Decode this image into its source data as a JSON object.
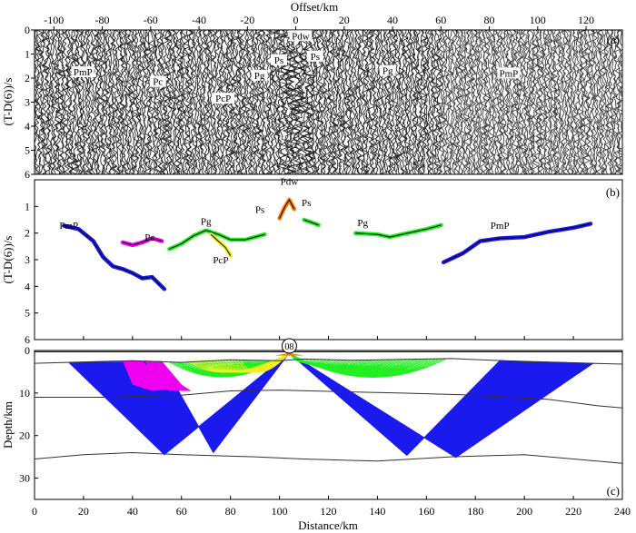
{
  "colors": {
    "blue": "#1a1aee",
    "magenta": "#f000f0",
    "green": "#22ee22",
    "yellow": "#f0f020",
    "orange": "#ff7a00",
    "line": "#333333"
  },
  "chart_data": [
    {
      "panel": "(a)",
      "type": "heatmap",
      "xlabel": "Offset/km",
      "ylabel": "(T-D(6))/s",
      "xlim": [
        -108,
        135
      ],
      "ylim": [
        0,
        6
      ],
      "xticks": [
        -100,
        -80,
        -60,
        -40,
        -20,
        0,
        20,
        40,
        60,
        80,
        100,
        120
      ],
      "yticks": [
        0,
        1,
        2,
        3,
        4,
        5,
        6
      ],
      "annotations": [
        {
          "text": "PmP",
          "x": -88,
          "y": 1.85
        },
        {
          "text": "Pc",
          "x": -57,
          "y": 2.25
        },
        {
          "text": "PcP",
          "x": -30,
          "y": 2.95
        },
        {
          "text": "Pg",
          "x": -15,
          "y": 2.0
        },
        {
          "text": "Ps",
          "x": -7,
          "y": 1.35
        },
        {
          "text": "Pdw",
          "x": 2,
          "y": 0.35
        },
        {
          "text": "Ps",
          "x": 8,
          "y": 1.2
        },
        {
          "text": "Pg",
          "x": 38,
          "y": 1.8
        },
        {
          "text": "PmP",
          "x": 88,
          "y": 1.9
        }
      ]
    },
    {
      "panel": "(b)",
      "type": "scatter",
      "ylabel": "(T-D(6))/s",
      "xlim": [
        0,
        240
      ],
      "ylim": [
        0,
        6
      ],
      "yticks": [
        1,
        2,
        3,
        4,
        5,
        6
      ],
      "series": [
        {
          "label": "PmP",
          "color": "blue",
          "x": [
            12,
            18,
            24,
            28,
            32,
            36,
            40,
            44,
            48,
            53
          ],
          "y": [
            1.72,
            1.85,
            2.3,
            2.9,
            3.25,
            3.35,
            3.5,
            3.7,
            3.65,
            4.1
          ]
        },
        {
          "label": "Pc",
          "color": "magenta",
          "x": [
            36,
            40,
            44,
            48,
            52
          ],
          "y": [
            2.35,
            2.45,
            2.35,
            2.2,
            2.3
          ]
        },
        {
          "label": "Pg",
          "color": "green",
          "x": [
            55,
            60,
            65,
            70,
            75,
            80,
            86,
            90,
            94
          ],
          "y": [
            2.6,
            2.4,
            2.1,
            1.9,
            2.05,
            2.25,
            2.25,
            2.15,
            2.05
          ]
        },
        {
          "label": "PcP",
          "color": "yellow",
          "x": [
            72,
            75,
            78,
            80
          ],
          "y": [
            2.05,
            2.3,
            2.55,
            2.85
          ]
        },
        {
          "label": "Pdw",
          "color": "orange",
          "x": [
            100,
            102,
            104,
            106
          ],
          "y": [
            1.45,
            1.05,
            0.75,
            1.1
          ]
        },
        {
          "label": "Ps",
          "color": "green",
          "x": [
            110,
            113,
            116
          ],
          "y": [
            1.5,
            1.6,
            1.7
          ]
        },
        {
          "label": "Pg",
          "color": "green",
          "x": [
            131,
            140,
            145,
            150,
            160,
            166
          ],
          "y": [
            2.0,
            2.05,
            2.15,
            2.05,
            1.85,
            1.7
          ]
        },
        {
          "label": "PmP",
          "color": "blue",
          "x": [
            167,
            175,
            182,
            190,
            200,
            210,
            220,
            227
          ],
          "y": [
            3.1,
            2.75,
            2.3,
            2.2,
            2.15,
            1.95,
            1.8,
            1.65
          ]
        }
      ],
      "annotations": [
        {
          "text": "PmP",
          "x": 14,
          "y": 1.7
        },
        {
          "text": "Pc",
          "x": 47,
          "y": 2.15
        },
        {
          "text": "Pg",
          "x": 70,
          "y": 1.55
        },
        {
          "text": "PcP",
          "x": 76,
          "y": 3.0
        },
        {
          "text": "Ps",
          "x": 92,
          "y": 1.1
        },
        {
          "text": "Pdw",
          "x": 104,
          "y": 0.05
        },
        {
          "text": "Ps",
          "x": 111,
          "y": 0.85
        },
        {
          "text": "Pg",
          "x": 134,
          "y": 1.6
        },
        {
          "text": "PmP",
          "x": 190,
          "y": 1.7
        }
      ]
    },
    {
      "panel": "(c)",
      "type": "ray-diagram",
      "xlabel": "Distance/km",
      "ylabel": "Depth/km",
      "xlim": [
        0,
        240
      ],
      "ylim": [
        0,
        35
      ],
      "xticks": [
        0,
        20,
        40,
        60,
        80,
        100,
        120,
        140,
        160,
        180,
        200,
        220,
        240
      ],
      "yticks": [
        0,
        10,
        20,
        30
      ],
      "station_label": "08",
      "source_x": 104,
      "layers": [
        {
          "x": [
            0,
            40,
            60,
            80,
            100,
            110,
            130,
            170,
            200,
            240
          ],
          "y": [
            3,
            2.4,
            2.8,
            2.2,
            2.4,
            2.0,
            2.3,
            1.9,
            2.6,
            3.2
          ]
        },
        {
          "x": [
            0,
            30,
            60,
            80,
            100,
            120,
            150,
            180,
            210,
            230,
            240
          ],
          "y": [
            11,
            11,
            10.5,
            9.5,
            9.3,
            9.6,
            10,
            10.5,
            11.5,
            13,
            13.5
          ]
        },
        {
          "x": [
            0,
            20,
            40,
            60,
            90,
            110,
            140,
            170,
            200,
            220,
            240
          ],
          "y": [
            25.5,
            24.5,
            24,
            24.5,
            25,
            25.5,
            26,
            25,
            24.5,
            25.5,
            26.5
          ]
        }
      ]
    }
  ]
}
